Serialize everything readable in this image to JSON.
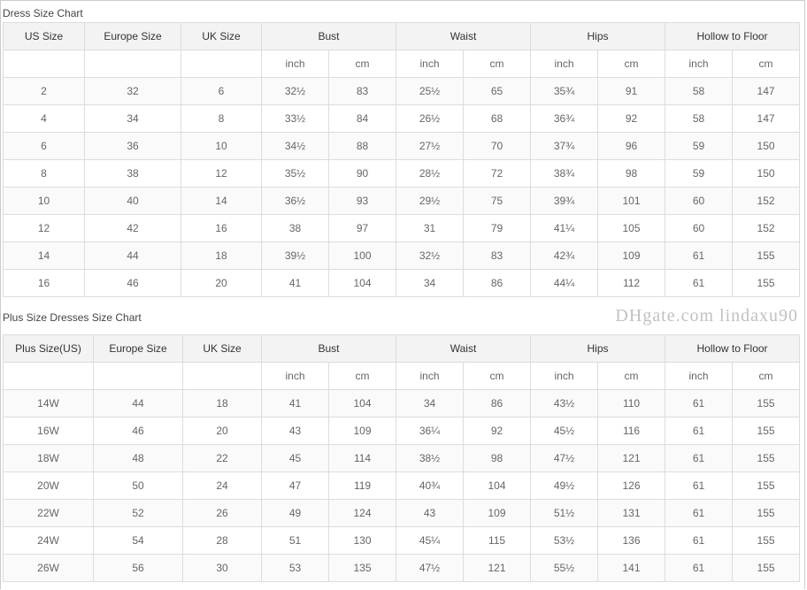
{
  "tables": [
    {
      "title": "Dress Size Chart",
      "headers": [
        "US Size",
        "Europe Size",
        "UK Size",
        "Bust",
        "Waist",
        "Hips",
        "Hollow to Floor"
      ],
      "units": [
        "inch",
        "cm",
        "inch",
        "cm",
        "inch",
        "cm",
        "inch",
        "cm"
      ],
      "rows": [
        [
          "2",
          "32",
          "6",
          "32½",
          "83",
          "25½",
          "65",
          "35¾",
          "91",
          "58",
          "147"
        ],
        [
          "4",
          "34",
          "8",
          "33½",
          "84",
          "26½",
          "68",
          "36¾",
          "92",
          "58",
          "147"
        ],
        [
          "6",
          "36",
          "10",
          "34½",
          "88",
          "27½",
          "70",
          "37¾",
          "96",
          "59",
          "150"
        ],
        [
          "8",
          "38",
          "12",
          "35½",
          "90",
          "28½",
          "72",
          "38¾",
          "98",
          "59",
          "150"
        ],
        [
          "10",
          "40",
          "14",
          "36½",
          "93",
          "29½",
          "75",
          "39¾",
          "101",
          "60",
          "152"
        ],
        [
          "12",
          "42",
          "16",
          "38",
          "97",
          "31",
          "79",
          "41¼",
          "105",
          "60",
          "152"
        ],
        [
          "14",
          "44",
          "18",
          "39½",
          "100",
          "32½",
          "83",
          "42¾",
          "109",
          "61",
          "155"
        ],
        [
          "16",
          "46",
          "20",
          "41",
          "104",
          "34",
          "86",
          "44¼",
          "112",
          "61",
          "155"
        ]
      ]
    },
    {
      "title": "Plus Size Dresses Size Chart",
      "headers": [
        "Plus Size(US)",
        "Europe Size",
        "UK Size",
        "Bust",
        "Waist",
        "Hips",
        "Hollow to Floor"
      ],
      "units": [
        "inch",
        "cm",
        "inch",
        "cm",
        "inch",
        "cm",
        "inch",
        "cm"
      ],
      "rows": [
        [
          "14W",
          "44",
          "18",
          "41",
          "104",
          "34",
          "86",
          "43½",
          "110",
          "61",
          "155"
        ],
        [
          "16W",
          "46",
          "20",
          "43",
          "109",
          "36¼",
          "92",
          "45½",
          "116",
          "61",
          "155"
        ],
        [
          "18W",
          "48",
          "22",
          "45",
          "114",
          "38½",
          "98",
          "47½",
          "121",
          "61",
          "155"
        ],
        [
          "20W",
          "50",
          "24",
          "47",
          "119",
          "40¾",
          "104",
          "49½",
          "126",
          "61",
          "155"
        ],
        [
          "22W",
          "52",
          "26",
          "49",
          "124",
          "43",
          "109",
          "51½",
          "131",
          "61",
          "155"
        ],
        [
          "24W",
          "54",
          "28",
          "51",
          "130",
          "45¼",
          "115",
          "53½",
          "136",
          "61",
          "155"
        ],
        [
          "26W",
          "56",
          "30",
          "53",
          "135",
          "47½",
          "121",
          "55½",
          "141",
          "61",
          "155"
        ]
      ]
    }
  ],
  "watermark": "DHgate.com lindaxu90"
}
